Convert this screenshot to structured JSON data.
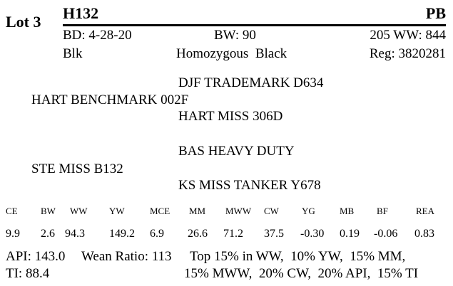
{
  "lot": "Lot 3",
  "animal": {
    "id": "H132",
    "breed": "PB"
  },
  "info": {
    "birth_date": "BD: 4-28-20",
    "birth_weight": "BW: 90",
    "weaning_weight": "205 WW: 844",
    "color": "Blk",
    "polled": "Homozygous  Black",
    "registration": "Reg: 3820281"
  },
  "pedigree": {
    "sire": "HART BENCHMARK 002F",
    "sire_sire": "DJF TRADEMARK D634",
    "sire_dam": "HART MISS 306D",
    "dam": "STE MISS B132",
    "dam_sire": "BAS HEAVY DUTY",
    "dam_dam": "KS MISS TANKER Y678"
  },
  "epd": {
    "headers": [
      "CE",
      "BW",
      "WW",
      "YW",
      "MCE",
      "MM",
      "MWW",
      "CW",
      "YG",
      "MB",
      "BF",
      "REA"
    ],
    "values": [
      "9.9",
      "2.6",
      "94.3",
      "149.2",
      "6.9",
      "26.6",
      "71.2",
      "37.5",
      "-0.30",
      "0.19",
      "-0.06",
      "0.83"
    ]
  },
  "footer": {
    "api": "API: 143.0",
    "wean_ratio": "Wean Ratio: 113",
    "top_line1": "Top 15% in WW,  10% YW,  15% MM,",
    "ti": "TI: 88.4",
    "top_line2": "15% MWW,  20% CW,  20% API,  15% TI"
  }
}
